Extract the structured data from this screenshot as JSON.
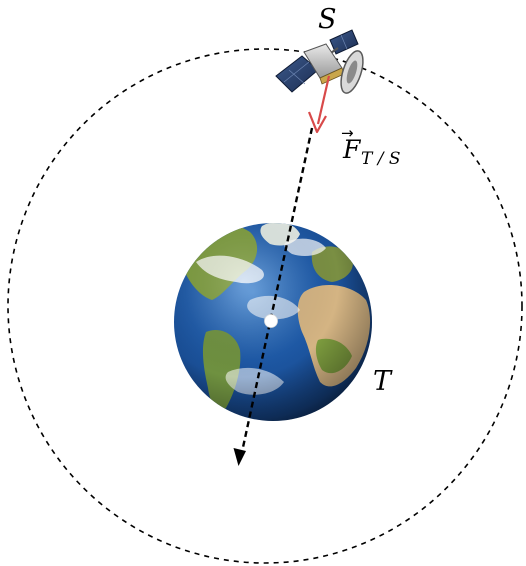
{
  "diagram": {
    "satellite_label": "S",
    "earth_label": "T",
    "force_label": {
      "symbol": "F",
      "subscript": "T / S",
      "vector_arrow": "→"
    }
  },
  "colors": {
    "orbit": "#000000",
    "force_vector": "#d84a4a",
    "trajectory": "#000000",
    "earth_center": "#ffffff",
    "ocean": "#1e5aa8",
    "land": "#7c9b3e",
    "desert": "#d4b483"
  },
  "icons": {
    "satellite": "satellite-icon",
    "earth": "earth-globe-icon"
  }
}
